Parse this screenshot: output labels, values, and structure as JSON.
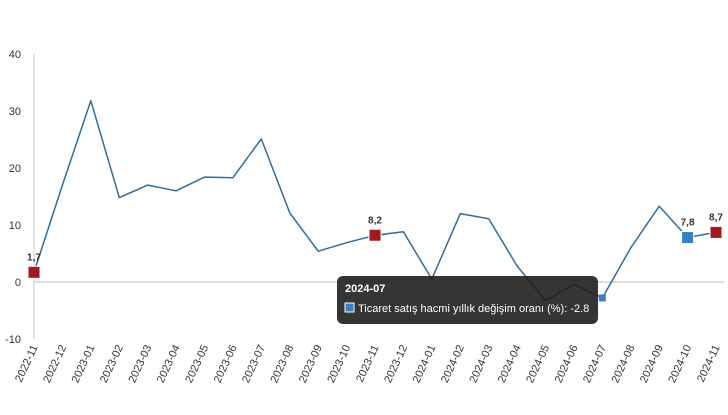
{
  "chart_data": {
    "type": "line",
    "categories": [
      "2022-11",
      "2022-12",
      "2023-01",
      "2023-02",
      "2023-03",
      "2023-04",
      "2023-05",
      "2023-06",
      "2023-07",
      "2023-08",
      "2023-09",
      "2023-10",
      "2023-11",
      "2023-12",
      "2024-01",
      "2024-02",
      "2024-03",
      "2024-04",
      "2024-05",
      "2024-06",
      "2024-07",
      "2024-08",
      "2024-09",
      "2024-10",
      "2024-11"
    ],
    "series": [
      {
        "name": "Ticaret satış hacmi yıllık değişim oranı (%)",
        "values": [
          1.7,
          17.0,
          31.8,
          14.8,
          17.0,
          16.0,
          18.4,
          18.3,
          25.1,
          12.1,
          5.4,
          6.9,
          8.2,
          8.8,
          0.5,
          12.0,
          11.1,
          2.8,
          -3.3,
          -0.4,
          -2.8,
          6.0,
          13.3,
          7.8,
          8.7
        ],
        "color": "#2e6e9e"
      }
    ],
    "ylim": [
      -10,
      40
    ],
    "yticks": [
      -10,
      0,
      10,
      20,
      30,
      40
    ],
    "grid": false,
    "highlighted_points": [
      {
        "category": "2022-11",
        "label": "1,7",
        "color": "#a11a1f"
      },
      {
        "category": "2023-11",
        "label": "8,2",
        "color": "#a11a1f"
      },
      {
        "category": "2024-10",
        "label": "7,8",
        "color": "#3a7fc0"
      },
      {
        "category": "2024-11",
        "label": "8,7",
        "color": "#a11a1f"
      }
    ],
    "tooltip": {
      "title": "2024-07",
      "text": "Ticaret satış hacmi yıllık değişim oranı (%): -2.8",
      "swatch_color": "#3a7fc0"
    }
  }
}
